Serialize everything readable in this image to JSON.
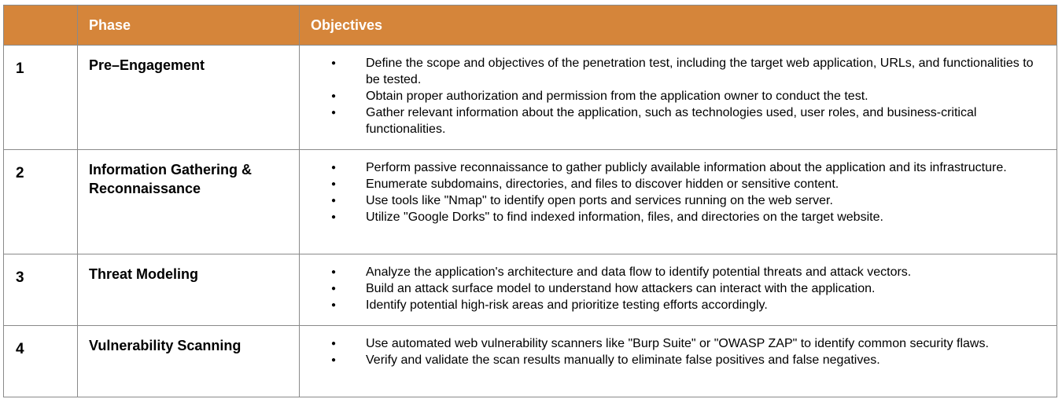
{
  "header": {
    "num": "",
    "phase": "Phase",
    "objectives": "Objectives"
  },
  "rows": [
    {
      "num": "1",
      "phase": "Pre–Engagement",
      "objectives": [
        "Define the scope and objectives of the penetration test, including the target web application, URLs, and functionalities to be tested.",
        "Obtain proper authorization and permission from the application owner to conduct the test.",
        "Gather relevant information about the application, such as technologies used, user roles, and business-critical functionalities."
      ]
    },
    {
      "num": "2",
      "phase": "Information Gathering & Reconnaissance",
      "objectives": [
        "Perform passive reconnaissance to gather publicly available information about the application and its infrastructure.",
        "Enumerate subdomains, directories, and files to discover hidden or sensitive content.",
        "Use tools like \"Nmap\" to identify open ports and services running on the web server.",
        "Utilize \"Google Dorks\" to find indexed information, files, and directories on the target website."
      ]
    },
    {
      "num": "3",
      "phase": "Threat Modeling",
      "objectives": [
        "Analyze the application's architecture and data flow to identify potential threats and attack vectors.",
        "Build an attack surface model to understand how attackers can interact with the application.",
        "Identify potential high-risk areas and prioritize testing efforts accordingly."
      ]
    },
    {
      "num": "4",
      "phase": "Vulnerability Scanning",
      "objectives": [
        "Use automated web vulnerability scanners like \"Burp Suite\" or \"OWASP ZAP\" to identify common security flaws.",
        "Verify and validate the scan results manually to eliminate false positives and false negatives."
      ]
    }
  ],
  "colors": {
    "header_bg": "#d5853a",
    "header_text": "#ffffff",
    "border": "#8a8a8a"
  }
}
